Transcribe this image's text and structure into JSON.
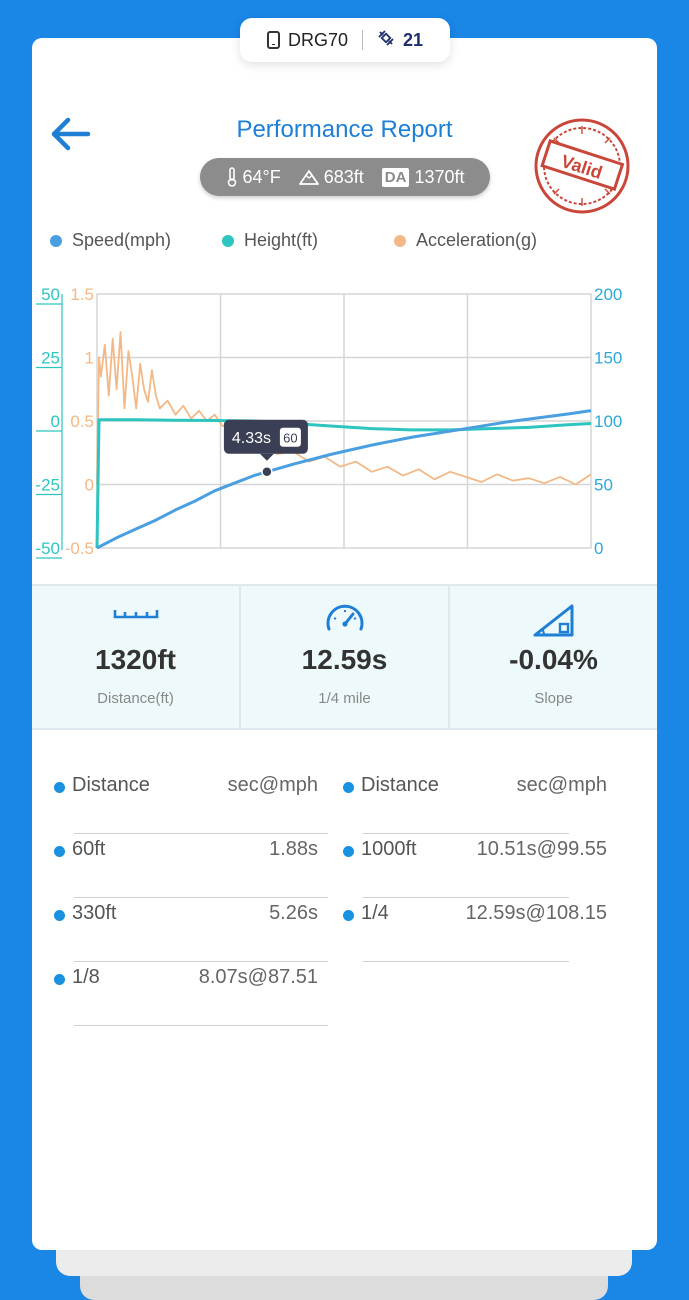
{
  "device": {
    "name": "DRG70",
    "icon": "phone-icon",
    "satellites": "21",
    "satellite_icon": "satellite-icon"
  },
  "header": {
    "title": "Performance Report",
    "back_icon": "back-arrow-icon",
    "stamp_text": "Valid",
    "stamp_color": "#c9473a",
    "accent_color": "#1e7fd4"
  },
  "conditions": {
    "temperature": "64°F",
    "elevation": "683ft",
    "da_label": "DA",
    "density_altitude": "1370ft"
  },
  "legend": [
    {
      "label": "Speed(mph)",
      "color": "#4a9fe0"
    },
    {
      "label": "Height(ft)",
      "color": "#2ec4c0"
    },
    {
      "label": "Acceleration(g)",
      "color": "#f2b887"
    }
  ],
  "chart_data": {
    "type": "line",
    "title": "",
    "xlabel": "",
    "grid": true,
    "xlim": [
      0,
      12.59
    ],
    "axes": {
      "height": {
        "ticks": [
          "50",
          "25",
          "0",
          "-25",
          "-50"
        ],
        "range": [
          -50,
          50
        ],
        "color": "#2ec4c0"
      },
      "acceleration": {
        "ticks": [
          "1.5",
          "1",
          "0.5",
          "0",
          "-0.5"
        ],
        "range": [
          -0.5,
          1.5
        ],
        "color": "#f2b887"
      },
      "speed": {
        "ticks": [
          "200",
          "150",
          "100",
          "50",
          "0"
        ],
        "range": [
          0,
          200
        ],
        "color": "#2ea8d8"
      }
    },
    "series": [
      {
        "name": "Speed(mph)",
        "axis": "speed",
        "color": "#4a9fe0",
        "x": [
          0,
          0.5,
          1.0,
          1.5,
          2.0,
          2.5,
          3.0,
          3.5,
          4.0,
          4.33,
          5.0,
          6.0,
          7.0,
          8.07,
          9.0,
          10.0,
          10.51,
          11.0,
          12.0,
          12.59
        ],
        "y": [
          0,
          8,
          15,
          22,
          30,
          37,
          45,
          51,
          57,
          60,
          66,
          74,
          81,
          87.5,
          92,
          97,
          99.5,
          101.5,
          105.5,
          108.15
        ]
      },
      {
        "name": "Height(ft)",
        "axis": "height",
        "color": "#2ec4c0",
        "x": [
          0,
          0.05,
          1,
          2,
          3,
          4,
          5,
          6,
          7,
          8,
          9,
          10,
          11,
          12,
          12.59
        ],
        "y": [
          -50,
          0.5,
          0.5,
          0.3,
          0.2,
          0,
          -1,
          -2,
          -3,
          -3.5,
          -3.5,
          -3,
          -2.5,
          -1.5,
          -1
        ]
      },
      {
        "name": "Acceleration(g)",
        "axis": "acceleration",
        "color": "#f2b887",
        "x": [
          0,
          0.05,
          0.1,
          0.2,
          0.3,
          0.4,
          0.5,
          0.6,
          0.7,
          0.8,
          0.9,
          1.0,
          1.1,
          1.2,
          1.3,
          1.4,
          1.5,
          1.6,
          1.8,
          2.0,
          2.2,
          2.4,
          2.6,
          2.8,
          3.0,
          3.2,
          3.4,
          3.6,
          3.8,
          4.0,
          4.33,
          4.6,
          5.0,
          5.4,
          5.8,
          6.2,
          6.6,
          7.0,
          7.4,
          7.8,
          8.2,
          8.6,
          9.0,
          9.4,
          9.8,
          10.2,
          10.6,
          11.0,
          11.4,
          11.8,
          12.2,
          12.59
        ],
        "y": [
          0,
          1.0,
          0.85,
          1.1,
          0.7,
          1.15,
          0.75,
          1.2,
          0.6,
          1.05,
          0.85,
          0.6,
          0.95,
          0.75,
          0.65,
          0.9,
          0.7,
          0.6,
          0.66,
          0.55,
          0.62,
          0.52,
          0.58,
          0.5,
          0.55,
          0.46,
          0.48,
          0.4,
          0.42,
          0.33,
          0.27,
          0.24,
          0.26,
          0.18,
          0.22,
          0.14,
          0.18,
          0.1,
          0.14,
          0.07,
          0.12,
          0.04,
          0.1,
          0.06,
          0.02,
          0.08,
          0.03,
          0.05,
          0.01,
          0.06,
          0.0,
          0.08
        ]
      }
    ],
    "tooltip": {
      "time": "4.33s",
      "speed": "60",
      "x": 4.33,
      "y": 60
    }
  },
  "stats": [
    {
      "icon": "ruler-icon",
      "value": "1320ft",
      "label": "Distance(ft)"
    },
    {
      "icon": "speedometer-icon",
      "value": "12.59s",
      "label": "1/4 mile"
    },
    {
      "icon": "slope-icon",
      "value": "-0.04%",
      "label": "Slope"
    }
  ],
  "splits": {
    "headers": [
      {
        "name": "Distance",
        "value": "sec@mph"
      },
      {
        "name": "Distance",
        "value": "sec@mph"
      }
    ],
    "left": [
      {
        "name": "60ft",
        "value": "1.88s"
      },
      {
        "name": "330ft",
        "value": "5.26s"
      },
      {
        "name": "1/8",
        "value": "8.07s@87.51"
      }
    ],
    "right": [
      {
        "name": "1000ft",
        "value": "10.51s@99.55"
      },
      {
        "name": "1/4",
        "value": "12.59s@108.15"
      }
    ]
  }
}
